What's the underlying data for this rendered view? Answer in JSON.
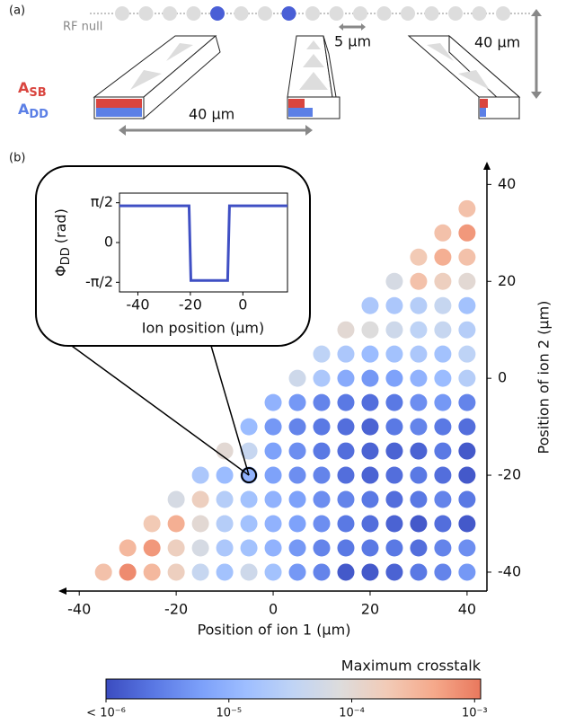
{
  "panel_a": {
    "label": "(a)",
    "rf_null": "RF null",
    "spacing": "5 μm",
    "height": "40 μm",
    "width": "40 μm",
    "a_sb": {
      "main": "A",
      "sub": "SB",
      "color": "#d9453f"
    },
    "a_dd": {
      "main": "A",
      "sub": "DD",
      "color": "#5b7fe6"
    }
  },
  "chart_data": [
    {
      "type": "dot_grid",
      "label": "(b)",
      "xlabel": "Position of ion 1 (μm)",
      "ylabel": "Position of ion 2 (μm)",
      "xlim": [
        -44.3,
        44.1
      ],
      "ylim": [
        -43.9,
        44.7
      ],
      "xticks": [
        -40,
        -20,
        0,
        20,
        40
      ],
      "yticks": [
        -40,
        -20,
        0,
        20,
        40
      ],
      "colorbar_title": "Maximum crosstalk",
      "log_color": true,
      "clim": [
        1e-06,
        0.00112
      ],
      "cticks": [
        {
          "value": 1e-06,
          "label": "< 10⁻⁶"
        },
        {
          "value": 1e-05,
          "label": "10⁻⁵"
        },
        {
          "value": 0.0001,
          "label": "10⁻⁴"
        },
        {
          "value": 0.001,
          "label": "10⁻³"
        }
      ],
      "colormap": [
        "#3b4cc0",
        "#5977e3",
        "#7b9ff9",
        "#9ebeff",
        "#c0d4f5",
        "#dddcdc",
        "#f2cbb7",
        "#f5a98b",
        "#e9785d"
      ],
      "highlight": {
        "x": -5,
        "y": -20
      },
      "rows": [
        {
          "y": -40,
          "x": [
            -35,
            -30,
            -25,
            -20,
            -15,
            -10,
            -5,
            0,
            5,
            10,
            15,
            20,
            25,
            30,
            35,
            40
          ],
          "values": [
            0.00025,
            0.0008,
            0.00032,
            0.00016,
            4e-05,
            1.6e-05,
            5e-05,
            1.6e-05,
            5e-06,
            3.2e-06,
            1.3e-06,
            1.3e-06,
            1.6e-06,
            2.5e-06,
            3.2e-06,
            5e-06
          ]
        },
        {
          "y": -35,
          "x": [
            -30,
            -25,
            -20,
            -15,
            -10,
            -5,
            0,
            5,
            10,
            15,
            20,
            25,
            30,
            35,
            40
          ],
          "values": [
            0.00032,
            0.00063,
            0.00016,
            6.3e-05,
            2e-05,
            1.6e-05,
            1e-05,
            5e-06,
            3.2e-06,
            2.5e-06,
            2.5e-06,
            2.5e-06,
            2e-06,
            3.2e-06,
            4e-06
          ]
        },
        {
          "y": -30,
          "x": [
            -25,
            -20,
            -15,
            -10,
            -5,
            0,
            5,
            10,
            15,
            20,
            25,
            30,
            35,
            40
          ],
          "values": [
            0.0002,
            0.0004,
            0.0001,
            2.5e-05,
            1.6e-05,
            1e-05,
            6.3e-06,
            4e-06,
            2.5e-06,
            2e-06,
            1.6e-06,
            1.3e-06,
            2e-06,
            1.3e-06
          ]
        },
        {
          "y": -25,
          "x": [
            -20,
            -15,
            -10,
            -5,
            0,
            5,
            10,
            15,
            20,
            25,
            30,
            35,
            40
          ],
          "values": [
            6.3e-05,
            0.00016,
            2.5e-05,
            1.6e-05,
            1e-05,
            6.3e-06,
            4e-06,
            3.2e-06,
            2.5e-06,
            2e-06,
            2.5e-06,
            3.2e-06,
            2.5e-06
          ]
        },
        {
          "y": -20,
          "x": [
            -15,
            -10,
            -5,
            0,
            5,
            10,
            15,
            20,
            25,
            30,
            35,
            40
          ],
          "values": [
            2e-05,
            1.3e-05,
            1e-05,
            6.3e-06,
            4e-06,
            3.2e-06,
            2e-06,
            1.6e-06,
            2e-06,
            2.5e-06,
            2e-06,
            1.3e-06
          ]
        },
        {
          "y": -15,
          "x": [
            -10,
            -5,
            0,
            5,
            10,
            15,
            20,
            25,
            30,
            35,
            40
          ],
          "values": [
            0.0001,
            4e-05,
            6.3e-06,
            4e-06,
            2.5e-06,
            2e-06,
            1.6e-06,
            1.6e-06,
            1.6e-06,
            2.5e-06,
            1.3e-06
          ]
        },
        {
          "y": -10,
          "x": [
            -5,
            0,
            5,
            10,
            15,
            20,
            25,
            30,
            35,
            40
          ],
          "values": [
            1.3e-05,
            5e-06,
            3.2e-06,
            2.5e-06,
            2e-06,
            1.6e-06,
            2.5e-06,
            3.2e-06,
            2.5e-06,
            2e-06
          ]
        },
        {
          "y": -5,
          "x": [
            0,
            5,
            10,
            15,
            20,
            25,
            30,
            35,
            40
          ],
          "values": [
            1e-05,
            5e-06,
            3.2e-06,
            2.5e-06,
            2e-06,
            2.5e-06,
            4e-06,
            5e-06,
            3.2e-06
          ]
        },
        {
          "y": 0,
          "x": [
            5,
            10,
            15,
            20,
            25,
            30,
            35,
            40
          ],
          "values": [
            5e-05,
            2e-05,
            8e-06,
            5e-06,
            6.3e-06,
            1e-05,
            1.3e-05,
            2.5e-05
          ]
        },
        {
          "y": 5,
          "x": [
            10,
            15,
            20,
            25,
            30,
            35,
            40
          ],
          "values": [
            3.2e-05,
            2e-05,
            1.3e-05,
            1.6e-05,
            2e-05,
            1.6e-05,
            3.2e-05
          ]
        },
        {
          "y": 10,
          "x": [
            15,
            20,
            25,
            30,
            35,
            40
          ],
          "values": [
            0.0001,
            8e-05,
            5e-05,
            3.2e-05,
            4e-05,
            2.5e-05
          ]
        },
        {
          "y": 15,
          "x": [
            20,
            25,
            30,
            35,
            40
          ],
          "values": [
            2e-05,
            2e-05,
            2.5e-05,
            4e-05,
            1.6e-05
          ]
        },
        {
          "y": 20,
          "x": [
            25,
            30,
            35,
            40
          ],
          "values": [
            6.3e-05,
            0.00025,
            0.00016,
            0.0001
          ]
        },
        {
          "y": 25,
          "x": [
            30,
            35,
            40
          ],
          "values": [
            0.0002,
            0.0004,
            0.00025
          ]
        },
        {
          "y": 30,
          "x": [
            35,
            40
          ],
          "values": [
            0.00025,
            0.00063
          ]
        },
        {
          "y": 35,
          "x": [
            40
          ],
          "values": [
            0.00025
          ]
        }
      ]
    },
    {
      "type": "line",
      "xlabel": "Ion position (μm)",
      "ylabel": {
        "main": "Φ",
        "sub": "DD",
        "unit": "(rad)"
      },
      "xlim": [
        -47,
        17
      ],
      "ylim": [
        -1.95,
        1.95
      ],
      "xticks": [
        -40,
        -20,
        0
      ],
      "yticks": [
        {
          "value": 1.5708,
          "label": "π/2"
        },
        0,
        {
          "value": -1.5708,
          "label": "-π/2"
        }
      ],
      "color": "#3f4fc4",
      "x": [
        -47,
        -20.5,
        -19.8,
        -5.8,
        -5.1,
        17
      ],
      "values": [
        1.45,
        1.45,
        -1.5,
        -1.5,
        1.45,
        1.45
      ]
    }
  ]
}
